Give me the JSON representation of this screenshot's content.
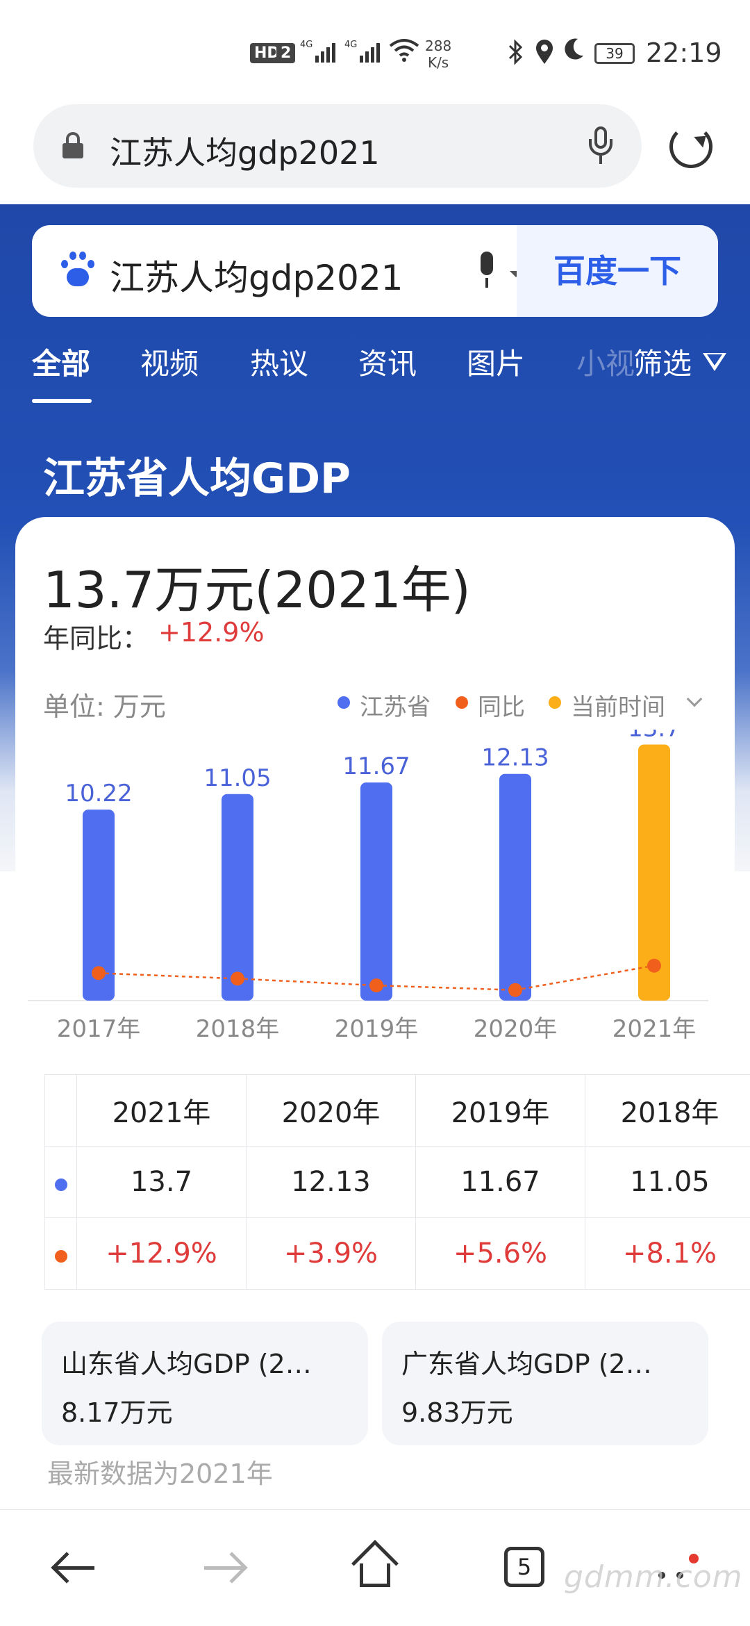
{
  "status_bar": {
    "hd": "HD",
    "sim": "2",
    "signal1": "4G",
    "signal2": "4G",
    "net_speed_value": "288",
    "net_speed_unit": "K/s",
    "battery": "39",
    "time": "22:19"
  },
  "browser": {
    "url": "江苏人均gdp2021"
  },
  "search": {
    "query": "江苏人均gdp2021",
    "button": "百度一下"
  },
  "tabs": {
    "all": "全部",
    "video": "视频",
    "discuss": "热议",
    "news": "资讯",
    "images": "图片",
    "more": "小视",
    "filter": "筛选"
  },
  "heading": "江苏省人均GDP",
  "summary": {
    "value": "13.7万元(2021年)",
    "yoy_label": "年同比：",
    "yoy_value": "+12.9%"
  },
  "chart_legend": {
    "unit": "单位: 万元",
    "series1": "江苏省",
    "series2": "同比",
    "series3": "当前时间"
  },
  "colors": {
    "bar": "#4f6ff0",
    "current_bar": "#fbae17",
    "yoy": "#f0601c",
    "header_blue": "#2350b6",
    "red": "#e03b3b"
  },
  "chart_data": {
    "type": "bar",
    "categories": [
      "2017年",
      "2018年",
      "2019年",
      "2020年",
      "2021年"
    ],
    "values": [
      10.22,
      11.05,
      11.67,
      12.13,
      13.7
    ],
    "series": [
      {
        "name": "江苏省",
        "values": [
          10.22,
          11.05,
          11.67,
          12.13,
          13.7
        ]
      },
      {
        "name": "同比",
        "values": [
          null,
          8.1,
          5.6,
          3.9,
          12.9
        ]
      }
    ],
    "highlight_index": 4,
    "ylim": [
      0,
      14.5
    ],
    "yoy_ylim": [
      0,
      100
    ],
    "unit": "万元",
    "grid": false
  },
  "table": {
    "headers": [
      "2021年",
      "2020年",
      "2019年",
      "2018年"
    ],
    "values": [
      "13.7",
      "12.13",
      "11.67",
      "11.05"
    ],
    "yoy": [
      "+12.9%",
      "+3.9%",
      "+5.6%",
      "+8.1%"
    ]
  },
  "related": [
    {
      "title": "山东省人均GDP (2…",
      "value": "8.17万元"
    },
    {
      "title": "广东省人均GDP (2…",
      "value": "9.83万元"
    }
  ],
  "footnote": "最新数据为2021年",
  "bottom_nav": {
    "tab_count": "5"
  },
  "watermark": "gdmm.com"
}
